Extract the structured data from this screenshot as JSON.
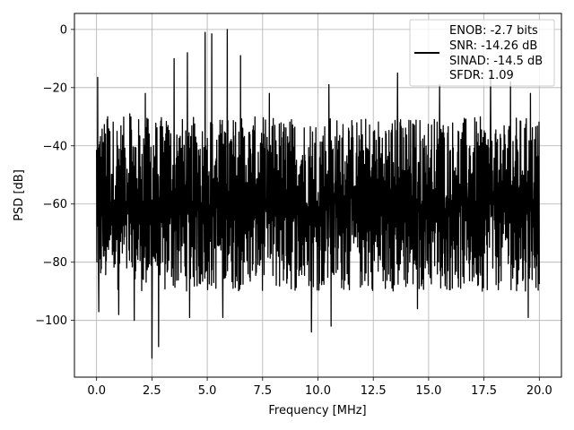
{
  "chart_data": {
    "type": "line",
    "title": "",
    "xlabel": "Frequency [MHz]",
    "ylabel": "PSD [dB]",
    "xlim": [
      -1.0,
      21.0
    ],
    "ylim": [
      -119.5,
      5.5
    ],
    "xticks": [
      0.0,
      2.5,
      5.0,
      7.5,
      10.0,
      12.5,
      15.0,
      17.5,
      20.0
    ],
    "xtick_labels": [
      "0.0",
      "2.5",
      "5.0",
      "7.5",
      "10.0",
      "12.5",
      "15.0",
      "17.5",
      "20.0"
    ],
    "yticks": [
      0,
      -20,
      -40,
      -60,
      -80,
      -100
    ],
    "ytick_labels": [
      "0",
      "−20",
      "−40",
      "−60",
      "−80",
      "−100"
    ],
    "grid": true,
    "legend_position": "top-right",
    "legend_lines": [
      "ENOB: -2.7 bits",
      "SNR: -14.26 dB",
      "SINAD: -14.5 dB",
      "SFDR: 1.09"
    ],
    "series": [
      {
        "color": "#000000",
        "x_range": [
          0.0,
          20.0
        ],
        "noise_band": [
          -90,
          -30
        ],
        "peaks": [
          {
            "x": 0.05,
            "y": -16.5
          },
          {
            "x": 0.5,
            "y": -30
          },
          {
            "x": 1.5,
            "y": -29
          },
          {
            "x": 2.2,
            "y": -22
          },
          {
            "x": 3.5,
            "y": -10
          },
          {
            "x": 4.1,
            "y": -8
          },
          {
            "x": 4.9,
            "y": -1
          },
          {
            "x": 5.2,
            "y": -1.5
          },
          {
            "x": 5.9,
            "y": 0
          },
          {
            "x": 6.5,
            "y": -9
          },
          {
            "x": 7.8,
            "y": -22
          },
          {
            "x": 10.5,
            "y": -19
          },
          {
            "x": 13.6,
            "y": -15
          },
          {
            "x": 15.5,
            "y": -19
          },
          {
            "x": 17.8,
            "y": -16
          },
          {
            "x": 18.7,
            "y": -18
          },
          {
            "x": 19.6,
            "y": -22
          }
        ],
        "dips": [
          {
            "x": 0.1,
            "y": -97
          },
          {
            "x": 1.0,
            "y": -98
          },
          {
            "x": 1.7,
            "y": -100
          },
          {
            "x": 2.5,
            "y": -113
          },
          {
            "x": 2.8,
            "y": -109
          },
          {
            "x": 4.2,
            "y": -99
          },
          {
            "x": 5.7,
            "y": -99
          },
          {
            "x": 9.7,
            "y": -104
          },
          {
            "x": 10.6,
            "y": -102
          },
          {
            "x": 14.5,
            "y": -96
          },
          {
            "x": 19.5,
            "y": -99
          }
        ]
      }
    ]
  }
}
